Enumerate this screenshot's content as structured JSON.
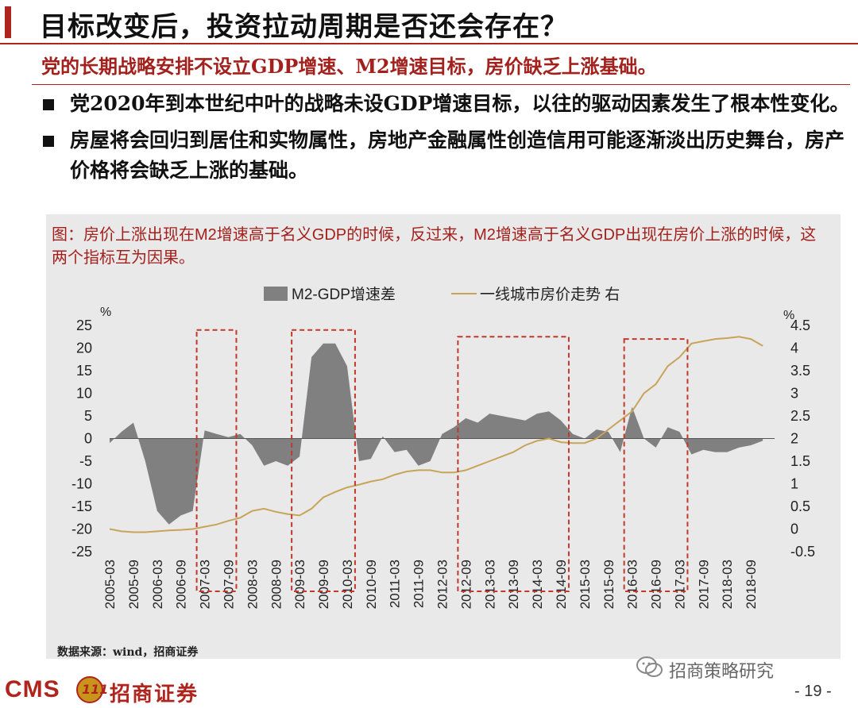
{
  "slide": {
    "title": "目标改变后，投资拉动周期是否还会存在？",
    "subtitle": "党的长期战略安排不设立GDP增速、M2增速目标，房价缺乏上涨基础。",
    "bullets": [
      "党2020年到本世纪中叶的战略未设GDP增速目标，以往的驱动因素发生了根本性变化。",
      "房屋将会回归到居住和实物属性，房地产金融属性创造信用可能逐渐淡出历史舞台，房产价格将会缺乏上涨的基础。"
    ],
    "chart_caption": "图：房价上涨出现在M2增速高于名义GDP的时候，反过来，M2增速高于名义GDP出现在房价上涨的时候，这两个指标互为因果。",
    "source": "数据来源：wind，招商证券",
    "wechat_label": "招商策略研究",
    "logo_cms": "CMS",
    "logo_mark": "111",
    "logo_name": "招商证券",
    "page_number": "- 19 -"
  },
  "colors": {
    "accent_red": "#b0241e",
    "area_gray": "#808080",
    "line_gold": "#c8a45a",
    "box_red": "#c0392b"
  },
  "chart_data": {
    "type": "area",
    "left_unit": "%",
    "right_unit": "%",
    "y_left_ticks": [
      25,
      20,
      15,
      10,
      5,
      0,
      -5,
      -10,
      -15,
      -20,
      -25
    ],
    "y_right_ticks": [
      "4.5",
      "4",
      "3.5",
      "3",
      "2.5",
      "2",
      "1.5",
      "1",
      "0.5",
      "0",
      "-0.5"
    ],
    "ylim_left": [
      -25,
      25
    ],
    "ylim_right": [
      -0.5,
      4.5
    ],
    "x_tick_labels": [
      "2005-03",
      "2005-09",
      "2006-03",
      "2006-09",
      "2007-03",
      "2007-09",
      "2008-03",
      "2008-09",
      "2009-03",
      "2009-09",
      "2010-03",
      "2010-09",
      "2011-03",
      "2011-09",
      "2012-03",
      "2012-09",
      "2013-03",
      "2013-09",
      "2014-03",
      "2014-09",
      "2015-03",
      "2015-09",
      "2016-03",
      "2016-09",
      "2017-03",
      "2017-09",
      "2018-03",
      "2018-09"
    ],
    "x_start": "2005-03",
    "x_end": "2019-03",
    "series": [
      {
        "name": "M2-GDP增速差",
        "kind": "area",
        "axis": "left",
        "x": [
          "2005-03",
          "2005-06",
          "2005-09",
          "2005-12",
          "2006-03",
          "2006-06",
          "2006-09",
          "2006-12",
          "2007-03",
          "2007-06",
          "2007-09",
          "2007-12",
          "2008-03",
          "2008-06",
          "2008-09",
          "2008-12",
          "2009-03",
          "2009-06",
          "2009-09",
          "2009-12",
          "2010-03",
          "2010-06",
          "2010-09",
          "2010-12",
          "2011-03",
          "2011-06",
          "2011-09",
          "2011-12",
          "2012-03",
          "2012-06",
          "2012-09",
          "2012-12",
          "2013-03",
          "2013-06",
          "2013-09",
          "2013-12",
          "2014-03",
          "2014-06",
          "2014-09",
          "2014-12",
          "2015-03",
          "2015-06",
          "2015-09",
          "2015-12",
          "2016-03",
          "2016-06",
          "2016-09",
          "2016-12",
          "2017-03",
          "2017-06",
          "2017-09",
          "2017-12",
          "2018-03",
          "2018-06",
          "2018-09",
          "2018-12"
        ],
        "values": [
          -1,
          1.5,
          3.5,
          -5,
          -16,
          -19,
          -17,
          -16,
          1.8,
          1,
          0.3,
          1,
          -1.5,
          -6,
          -5,
          -6,
          -4,
          18,
          21,
          21,
          16,
          -5,
          -4.5,
          0.5,
          -3,
          -2.5,
          -6,
          -5,
          1,
          2.5,
          4.5,
          3.5,
          5.5,
          5,
          4.5,
          4,
          5.5,
          6,
          4,
          1,
          0,
          2,
          1.5,
          -3,
          7,
          0,
          -2,
          2.5,
          1.5,
          -3.5,
          -2.5,
          -3,
          -3,
          -2,
          -1.5,
          -0.5
        ]
      },
      {
        "name": "一线城市房价走势 右",
        "kind": "line",
        "axis": "right",
        "x": [
          "2005-03",
          "2005-06",
          "2005-09",
          "2005-12",
          "2006-03",
          "2006-06",
          "2006-09",
          "2006-12",
          "2007-03",
          "2007-06",
          "2007-09",
          "2007-12",
          "2008-03",
          "2008-06",
          "2008-09",
          "2008-12",
          "2009-03",
          "2009-06",
          "2009-09",
          "2009-12",
          "2010-03",
          "2010-06",
          "2010-09",
          "2010-12",
          "2011-03",
          "2011-06",
          "2011-09",
          "2011-12",
          "2012-03",
          "2012-06",
          "2012-09",
          "2012-12",
          "2013-03",
          "2013-06",
          "2013-09",
          "2013-12",
          "2014-03",
          "2014-06",
          "2014-09",
          "2014-12",
          "2015-03",
          "2015-06",
          "2015-09",
          "2015-12",
          "2016-03",
          "2016-06",
          "2016-09",
          "2016-12",
          "2017-03",
          "2017-06",
          "2017-09",
          "2017-12",
          "2018-03",
          "2018-06",
          "2018-09",
          "2018-12"
        ],
        "values": [
          0,
          -0.05,
          -0.07,
          -0.07,
          -0.05,
          -0.03,
          -0.02,
          0,
          0.05,
          0.1,
          0.18,
          0.25,
          0.4,
          0.45,
          0.38,
          0.33,
          0.3,
          0.45,
          0.7,
          0.82,
          0.92,
          0.98,
          1.05,
          1.1,
          1.2,
          1.27,
          1.3,
          1.3,
          1.25,
          1.25,
          1.3,
          1.4,
          1.5,
          1.6,
          1.7,
          1.85,
          1.95,
          2,
          1.92,
          1.9,
          1.9,
          2,
          2.2,
          2.4,
          2.6,
          3,
          3.2,
          3.6,
          3.8,
          4.1,
          4.15,
          4.2,
          4.22,
          4.25,
          4.2,
          4.05
        ]
      }
    ],
    "highlight_boxes": [
      {
        "from": "2007-03",
        "to": "2007-09",
        "top": 24,
        "bottom": -25
      },
      {
        "from": "2009-03",
        "to": "2010-03",
        "top": 24,
        "bottom": -25
      },
      {
        "from": "2012-09",
        "to": "2014-09",
        "top": 22.5,
        "bottom": -25
      },
      {
        "from": "2016-03",
        "to": "2017-03",
        "top": 22,
        "bottom": -25
      }
    ],
    "legend_position": "top-center",
    "grid": false
  }
}
